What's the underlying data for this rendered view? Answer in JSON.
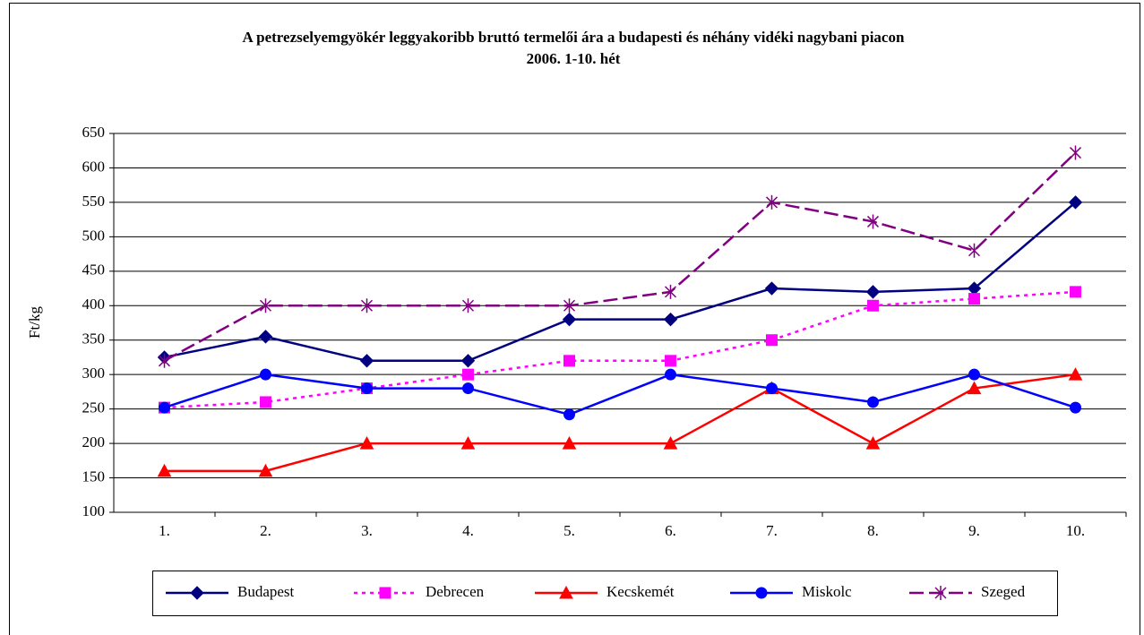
{
  "chart_data": {
    "type": "line",
    "title": "A petrezselyemgyökér leggyakoribb bruttó termelői ára a budapesti és néhány vidéki nagybani piacon",
    "subtitle": "2006. 1-10. hét",
    "y_label": "Ft/kg",
    "categories": [
      "1.",
      "2.",
      "3.",
      "4.",
      "5.",
      "6.",
      "7.",
      "8.",
      "9.",
      "10."
    ],
    "series": [
      {
        "name": "Budapest",
        "color": "#000080",
        "marker": "diamond",
        "dash": "solid",
        "values": [
          325,
          355,
          320,
          320,
          380,
          380,
          425,
          420,
          425,
          550
        ]
      },
      {
        "name": "Debrecen",
        "color": "#ff00ff",
        "marker": "square",
        "dash": "dotted",
        "values": [
          252,
          260,
          280,
          300,
          320,
          320,
          350,
          400,
          410,
          420
        ]
      },
      {
        "name": "Kecskemét",
        "color": "#ff0000",
        "marker": "triangle",
        "dash": "solid",
        "values": [
          160,
          160,
          200,
          200,
          200,
          200,
          280,
          200,
          280,
          300
        ]
      },
      {
        "name": "Miskolc",
        "color": "#0000ff",
        "marker": "circle",
        "dash": "solid",
        "values": [
          252,
          300,
          280,
          280,
          242,
          300,
          280,
          260,
          300,
          252
        ]
      },
      {
        "name": "Szeged",
        "color": "#800080",
        "marker": "star",
        "dash": "dashed",
        "values": [
          320,
          400,
          400,
          400,
          400,
          420,
          550,
          522,
          480,
          622
        ]
      }
    ],
    "ylim": [
      100,
      650
    ],
    "yticks": [
      100,
      150,
      200,
      250,
      300,
      350,
      400,
      450,
      500,
      550,
      600,
      650
    ],
    "grid": true,
    "legend": "bottom"
  }
}
